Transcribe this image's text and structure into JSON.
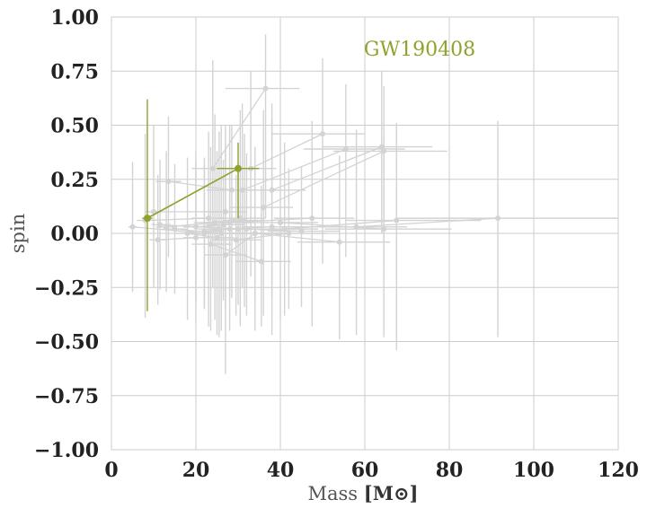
{
  "chart_data": {
    "type": "scatter",
    "xlabel": "Mass",
    "xlabel_unit": "[M⊙]",
    "ylabel": "spin",
    "xlim": [
      0,
      120
    ],
    "ylim": [
      -1.0,
      1.0
    ],
    "xticks": [
      "0",
      "20",
      "40",
      "60",
      "80",
      "100",
      "120"
    ],
    "yticks": [
      "1.00",
      "0.75",
      "0.50",
      "0.25",
      "0.00",
      "−0.25",
      "−0.50",
      "−0.75",
      "−1.00"
    ],
    "grid": true,
    "annotation": "GW190408",
    "highlight_color": "#8fa22e",
    "background_color": "#d3d3d3",
    "highlight": {
      "points": [
        {
          "x": 8.5,
          "y": 0.07,
          "xerr": [
            1.2,
            1.2
          ],
          "yerr": [
            0.43,
            0.55
          ]
        },
        {
          "x": 30.0,
          "y": 0.3,
          "xerr": [
            5.0,
            5.0
          ],
          "yerr": [
            0.23,
            0.12
          ]
        }
      ]
    },
    "background": {
      "pairs": [
        [
          {
            "x": 36.5,
            "y": 0.67,
            "xerr": [
              9.5,
              8.0
            ],
            "yerr": [
              0.6,
              0.25
            ]
          },
          {
            "x": 24.0,
            "y": 0.3,
            "xerr": [
              5.0,
              4.0
            ],
            "yerr": [
              0.55,
              0.5
            ]
          }
        ],
        [
          {
            "x": 50.0,
            "y": 0.46,
            "xerr": [
              12.0,
              10.0
            ],
            "yerr": [
              0.6,
              0.35
            ]
          },
          {
            "x": 33.0,
            "y": 0.3,
            "xerr": [
              7.0,
              6.0
            ],
            "yerr": [
              0.5,
              0.45
            ]
          }
        ],
        [
          {
            "x": 64.0,
            "y": 0.4,
            "xerr": [
              14.0,
              12.0
            ],
            "yerr": [
              0.4,
              0.35
            ]
          },
          {
            "x": 38.0,
            "y": 0.2,
            "xerr": [
              9.0,
              8.0
            ],
            "yerr": [
              0.5,
              0.4
            ]
          }
        ],
        [
          {
            "x": 55.5,
            "y": 0.39,
            "xerr": [
              10.0,
              14.0
            ],
            "yerr": [
              0.5,
              0.3
            ]
          },
          {
            "x": 31.0,
            "y": 0.2,
            "xerr": [
              6.0,
              6.0
            ],
            "yerr": [
              0.45,
              0.4
            ]
          }
        ],
        [
          {
            "x": 64.5,
            "y": 0.38,
            "xerr": [
              12.0,
              15.0
            ],
            "yerr": [
              0.55,
              0.3
            ]
          },
          {
            "x": 36.0,
            "y": 0.12,
            "xerr": [
              8.0,
              7.0
            ],
            "yerr": [
              0.5,
              0.45
            ]
          }
        ],
        [
          {
            "x": 91.5,
            "y": 0.07,
            "xerr": [
              24.0,
              34.0
            ],
            "yerr": [
              0.55,
              0.45
            ]
          },
          {
            "x": 58.0,
            "y": 0.03,
            "xerr": [
              18.0,
              12.0
            ],
            "yerr": [
              0.5,
              0.45
            ]
          }
        ],
        [
          {
            "x": 67.5,
            "y": 0.06,
            "xerr": [
              12.0,
              20.0
            ],
            "yerr": [
              0.6,
              0.45
            ]
          },
          {
            "x": 41.0,
            "y": 0.02,
            "xerr": [
              10.0,
              8.0
            ],
            "yerr": [
              0.4,
              0.4
            ]
          }
        ],
        [
          {
            "x": 64.5,
            "y": 0.02,
            "xerr": [
              14.0,
              16.0
            ],
            "yerr": [
              0.5,
              0.4
            ]
          },
          {
            "x": 40.0,
            "y": 0.05,
            "xerr": [
              10.0,
              9.0
            ],
            "yerr": [
              0.45,
              0.4
            ]
          }
        ],
        [
          {
            "x": 54.0,
            "y": -0.04,
            "xerr": [
              10.0,
              12.0
            ],
            "yerr": [
              0.45,
              0.4
            ]
          },
          {
            "x": 34.0,
            "y": 0.0,
            "xerr": [
              8.0,
              8.0
            ],
            "yerr": [
              0.45,
              0.4
            ]
          }
        ],
        [
          {
            "x": 47.5,
            "y": 0.07,
            "xerr": [
              9.0,
              10.0
            ],
            "yerr": [
              0.5,
              0.45
            ]
          },
          {
            "x": 28.0,
            "y": 0.05,
            "xerr": [
              6.0,
              6.0
            ],
            "yerr": [
              0.5,
              0.45
            ]
          }
        ],
        [
          {
            "x": 45.0,
            "y": 0.01,
            "xerr": [
              8.0,
              9.0
            ],
            "yerr": [
              0.35,
              0.3
            ]
          },
          {
            "x": 32.0,
            "y": 0.02,
            "xerr": [
              7.0,
              7.0
            ],
            "yerr": [
              0.4,
              0.35
            ]
          }
        ],
        [
          {
            "x": 42.0,
            "y": 0.0,
            "xerr": [
              8.0,
              9.0
            ],
            "yerr": [
              0.35,
              0.3
            ]
          },
          {
            "x": 29.5,
            "y": -0.03,
            "xerr": [
              6.0,
              6.0
            ],
            "yerr": [
              0.35,
              0.3
            ]
          }
        ],
        [
          {
            "x": 38.0,
            "y": 0.03,
            "xerr": [
              7.0,
              8.0
            ],
            "yerr": [
              0.5,
              0.5
            ]
          },
          {
            "x": 25.5,
            "y": 0.02,
            "xerr": [
              5.0,
              5.0
            ],
            "yerr": [
              0.5,
              0.45
            ]
          }
        ],
        [
          {
            "x": 35.5,
            "y": -0.13,
            "xerr": [
              6.0,
              7.0
            ],
            "yerr": [
              0.3,
              0.35
            ]
          },
          {
            "x": 23.5,
            "y": -0.05,
            "xerr": [
              4.5,
              5.0
            ],
            "yerr": [
              0.4,
              0.45
            ]
          }
        ],
        [
          {
            "x": 34.0,
            "y": 0.0,
            "xerr": [
              5.0,
              6.0
            ],
            "yerr": [
              0.3,
              0.3
            ]
          },
          {
            "x": 27.0,
            "y": -0.1,
            "xerr": [
              5.0,
              5.0
            ],
            "yerr": [
              0.55,
              0.5
            ]
          }
        ],
        [
          {
            "x": 30.5,
            "y": 0.07,
            "xerr": [
              6.0,
              6.0
            ],
            "yerr": [
              0.5,
              0.5
            ]
          },
          {
            "x": 24.5,
            "y": 0.05,
            "xerr": [
              5.0,
              5.0
            ],
            "yerr": [
              0.45,
              0.5
            ]
          }
        ],
        [
          {
            "x": 28.0,
            "y": 0.02,
            "xerr": [
              4.0,
              5.0
            ],
            "yerr": [
              0.3,
              0.3
            ]
          },
          {
            "x": 22.0,
            "y": 0.01,
            "xerr": [
              4.0,
              4.0
            ],
            "yerr": [
              0.35,
              0.3
            ]
          }
        ],
        [
          {
            "x": 26.5,
            "y": 0.04,
            "xerr": [
              4.0,
              5.0
            ],
            "yerr": [
              0.35,
              0.3
            ]
          },
          {
            "x": 20.0,
            "y": 0.03,
            "xerr": [
              3.0,
              4.0
            ],
            "yerr": [
              0.35,
              0.35
            ]
          }
        ],
        [
          {
            "x": 25.0,
            "y": -0.02,
            "xerr": [
              4.0,
              4.0
            ],
            "yerr": [
              0.45,
              0.4
            ]
          },
          {
            "x": 18.0,
            "y": 0.0,
            "xerr": [
              3.0,
              3.5
            ],
            "yerr": [
              0.4,
              0.35
            ]
          }
        ],
        [
          {
            "x": 31.5,
            "y": 0.06,
            "xerr": [
              5.0,
              5.0
            ],
            "yerr": [
              0.4,
              0.4
            ]
          },
          {
            "x": 13.0,
            "y": 0.03,
            "xerr": [
              2.5,
              2.5
            ],
            "yerr": [
              0.3,
              0.35
            ]
          }
        ],
        [
          {
            "x": 30.0,
            "y": 0.02,
            "xerr": [
              5.0,
              5.0
            ],
            "yerr": [
              0.35,
              0.3
            ]
          },
          {
            "x": 11.5,
            "y": 0.04,
            "xerr": [
              2.0,
              2.5
            ],
            "yerr": [
              0.3,
              0.3
            ]
          }
        ],
        [
          {
            "x": 28.5,
            "y": 0.2,
            "xerr": [
              6.0,
              6.0
            ],
            "yerr": [
              0.5,
              0.3
            ]
          },
          {
            "x": 13.5,
            "y": 0.24,
            "xerr": [
              3.0,
              3.0
            ],
            "yerr": [
              0.35,
              0.3
            ]
          }
        ],
        [
          {
            "x": 27.0,
            "y": 0.1,
            "xerr": [
              5.0,
              5.0
            ],
            "yerr": [
              0.45,
              0.4
            ]
          },
          {
            "x": 10.0,
            "y": 0.1,
            "xerr": [
              2.0,
              2.0
            ],
            "yerr": [
              0.35,
              0.4
            ]
          }
        ],
        [
          {
            "x": 23.0,
            "y": 0.07,
            "xerr": [
              4.0,
              4.0
            ],
            "yerr": [
              0.5,
              0.4
            ]
          },
          {
            "x": 8.0,
            "y": 0.06,
            "xerr": [
              2.0,
              1.5
            ],
            "yerr": [
              0.45,
              0.4
            ]
          }
        ],
        [
          {
            "x": 22.0,
            "y": 0.0,
            "xerr": [
              4.0,
              4.0
            ],
            "yerr": [
              0.35,
              0.35
            ]
          },
          {
            "x": 5.0,
            "y": 0.03,
            "xerr": [
              1.0,
              1.0
            ],
            "yerr": [
              0.3,
              0.3
            ]
          }
        ],
        [
          {
            "x": 20.0,
            "y": -0.02,
            "xerr": [
              3.0,
              3.0
            ],
            "yerr": [
              0.4,
              0.35
            ]
          },
          {
            "x": 11.0,
            "y": -0.03,
            "xerr": [
              2.0,
              2.0
            ],
            "yerr": [
              0.3,
              0.3
            ]
          }
        ],
        [
          {
            "x": 26.0,
            "y": 0.0,
            "xerr": [
              4.0,
              4.0
            ],
            "yerr": [
              0.45,
              0.5
            ]
          },
          {
            "x": 15.0,
            "y": 0.02,
            "xerr": [
              3.0,
              3.0
            ],
            "yerr": [
              0.3,
              0.3
            ]
          }
        ]
      ]
    }
  }
}
